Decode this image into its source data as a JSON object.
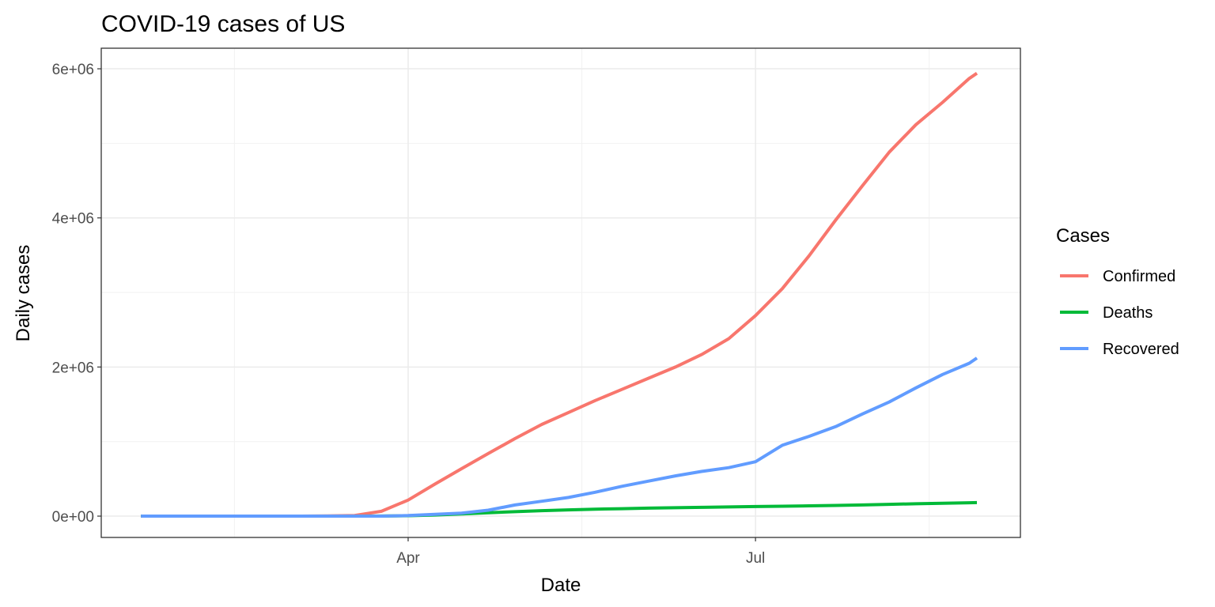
{
  "chart_data": {
    "type": "line",
    "title": "COVID-19 cases of US",
    "x_label": "Date",
    "y_label": "Daily cases",
    "legend_title": "Cases",
    "legend_position": "right",
    "grid": true,
    "x": [
      22,
      29,
      36,
      43,
      50,
      57,
      64,
      71,
      78,
      85,
      92,
      99,
      106,
      113,
      120,
      127,
      134,
      141,
      148,
      155,
      162,
      169,
      176,
      183,
      190,
      197,
      204,
      211,
      218,
      225,
      232,
      239,
      241
    ],
    "xlim": [
      11.6,
      252.4
    ],
    "xticks": [
      {
        "value": 92,
        "label": "Apr"
      },
      {
        "value": 183,
        "label": "Jul"
      }
    ],
    "ylim": [
      -286000,
      6276000
    ],
    "yticks": [
      {
        "value": 0,
        "label": "0e+00"
      },
      {
        "value": 2000000,
        "label": "2e+06"
      },
      {
        "value": 4000000,
        "label": "4e+06"
      },
      {
        "value": 6000000,
        "label": "6e+06"
      }
    ],
    "series": [
      {
        "name": "Confirmed",
        "color": "#f8766d",
        "values": [
          1,
          6,
          11,
          13,
          15,
          60,
          500,
          3500,
          9000,
          65000,
          215000,
          430000,
          636000,
          840000,
          1040000,
          1230000,
          1390000,
          1550000,
          1700000,
          1850000,
          2000000,
          2170000,
          2380000,
          2690000,
          3050000,
          3490000,
          3970000,
          4430000,
          4880000,
          5250000,
          5550000,
          5870000,
          5940000
        ]
      },
      {
        "name": "Deaths",
        "color": "#00ba38",
        "values": [
          0,
          0,
          0,
          0,
          0,
          0,
          0,
          10,
          150,
          1000,
          5000,
          15000,
          30000,
          46000,
          60000,
          73000,
          84000,
          93000,
          100000,
          107000,
          113000,
          118000,
          123000,
          128000,
          133000,
          138000,
          143000,
          150000,
          158000,
          166000,
          172000,
          179000,
          182000
        ]
      },
      {
        "name": "Recovered",
        "color": "#619cff",
        "values": [
          0,
          0,
          0,
          0,
          0,
          0,
          0,
          10,
          100,
          350,
          8000,
          25000,
          40000,
          80000,
          150000,
          200000,
          250000,
          320000,
          400000,
          470000,
          540000,
          600000,
          650000,
          730000,
          950000,
          1070000,
          1200000,
          1370000,
          1530000,
          1720000,
          1900000,
          2050000,
          2120000
        ]
      }
    ]
  }
}
